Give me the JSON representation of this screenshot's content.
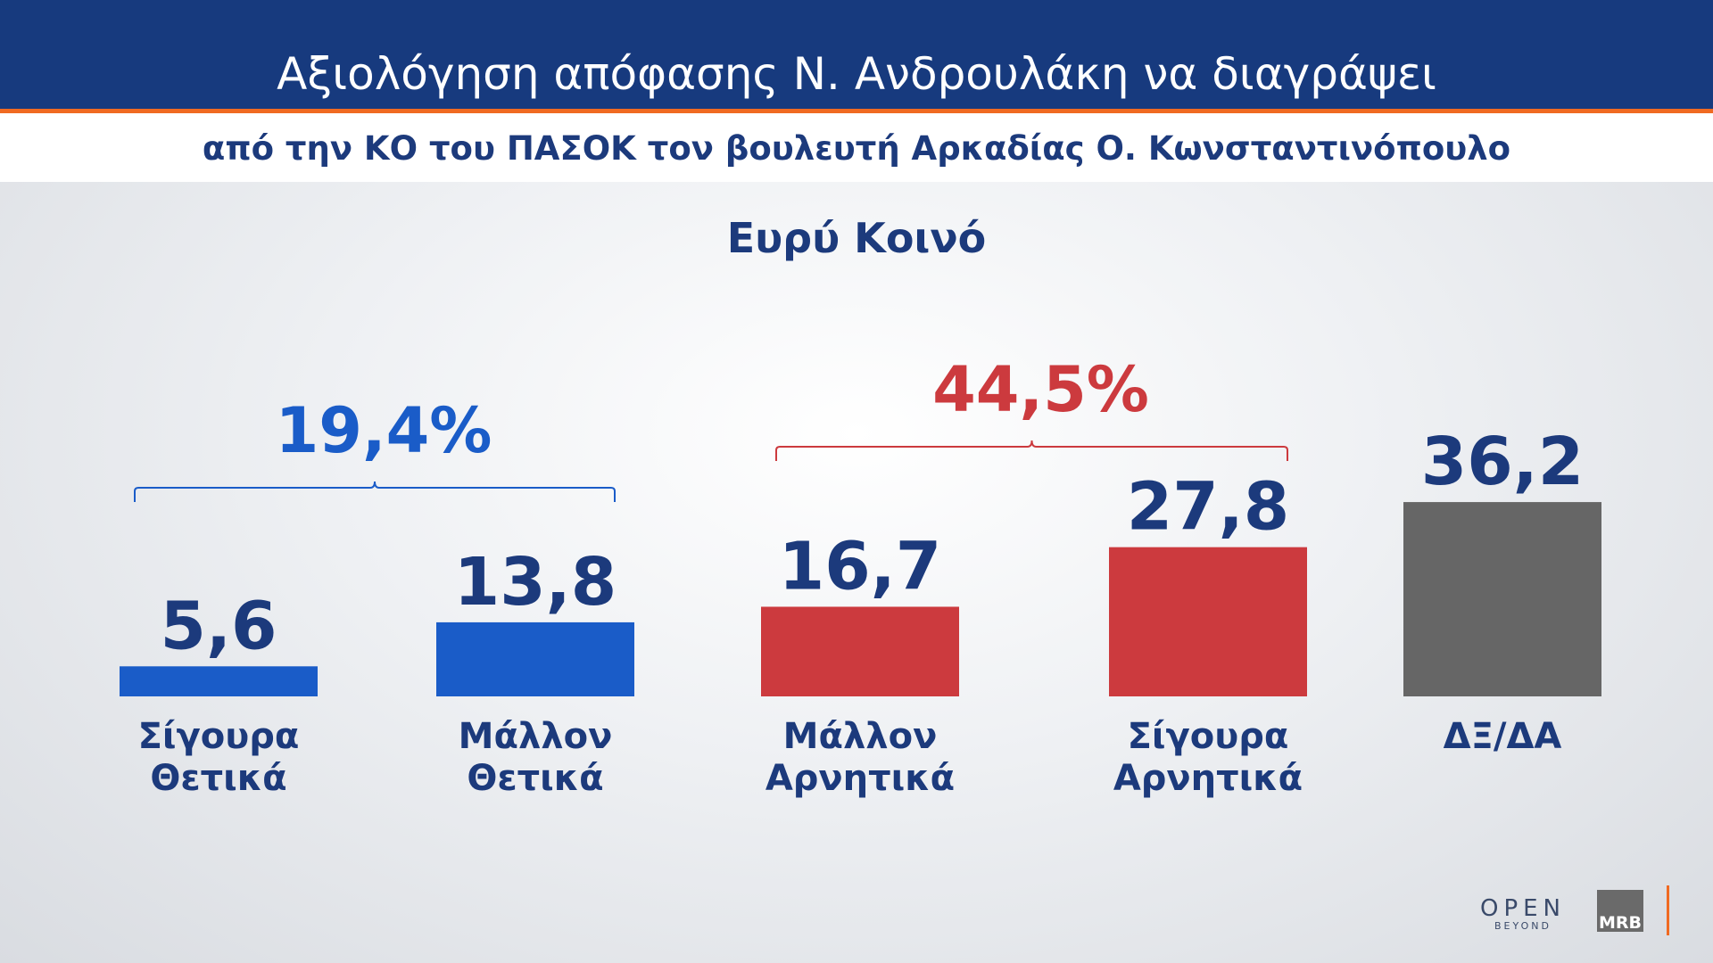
{
  "header": {
    "title": "Αξιολόγηση απόφασης Ν.  Ανδρουλάκη να διαγράψει",
    "subtitle": "από την ΚΟ του ΠΑΣΟΚ τον βουλευτή Αρκαδίας Ο. Κωνσταντινόπουλο"
  },
  "chart_data": {
    "type": "bar",
    "title": "Ευρύ Κοινό",
    "categories": [
      "Σίγουρα Θετικά",
      "Μάλλον Θετικά",
      "Μάλλον Αρνητικά",
      "Σίγουρα Αρνητικά",
      "ΔΞ/ΔΑ"
    ],
    "values": [
      5.6,
      13.8,
      16.7,
      27.8,
      36.2
    ],
    "value_labels": [
      "5,6",
      "13,8",
      "16,7",
      "27,8",
      "36,2"
    ],
    "colors": [
      "#1a5cc8",
      "#1a5cc8",
      "#cc3a3e",
      "#cc3a3e",
      "#666666"
    ],
    "groups": [
      {
        "value": 19.4,
        "label": "19,4%",
        "color": "#1a5cc8",
        "categories": [
          "Σίγουρα Θετικά",
          "Μάλλον Θετικά"
        ]
      },
      {
        "value": 44.5,
        "label": "44,5%",
        "color": "#cc3a3e",
        "categories": [
          "Μάλλον Αρνητικά",
          "Σίγουρα Αρνητικά"
        ]
      }
    ]
  },
  "logos": {
    "channel": "OPEN",
    "channel_sub": "BEYOND",
    "pollster": "MRB"
  }
}
